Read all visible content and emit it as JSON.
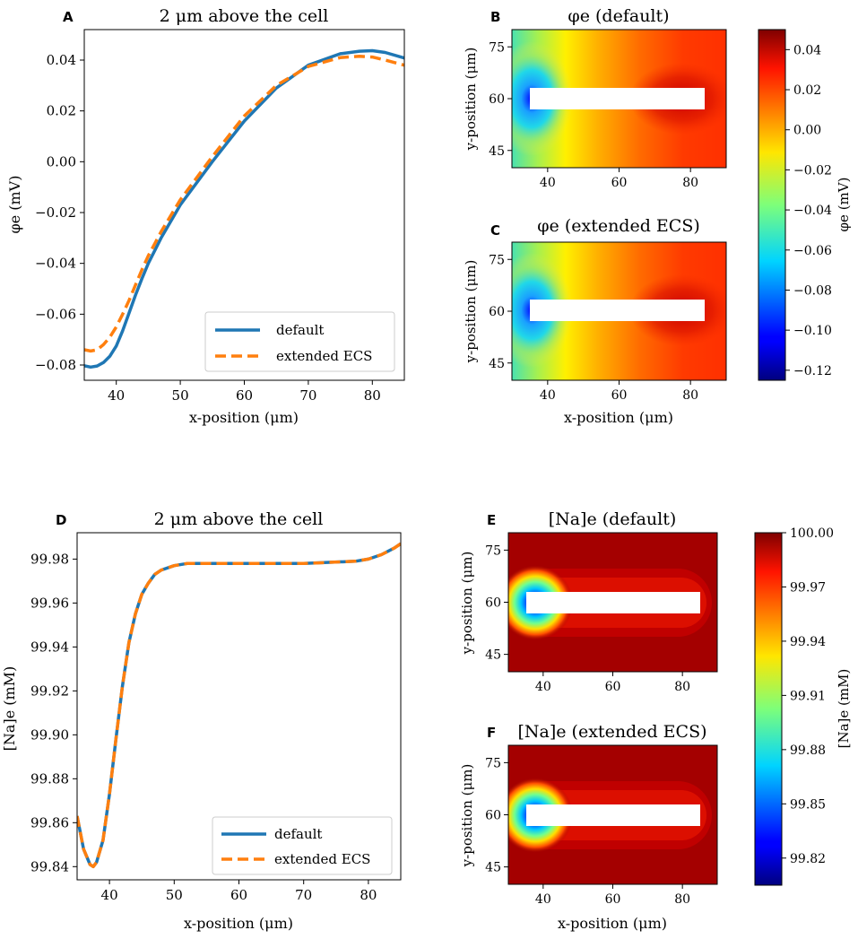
{
  "colors": {
    "default_line": "#1f77b4",
    "extended_line": "#ff7f0e",
    "cell_fill": "#ffffff",
    "axis": "#000000"
  },
  "chart_data": [
    {
      "panel": "A",
      "type": "line",
      "title": "2 μm above the cell",
      "xlabel": "x-position (μm)",
      "ylabel": "φe (mV)",
      "xlim": [
        35,
        85
      ],
      "ylim": [
        -0.086,
        0.052
      ],
      "xticks": [
        40,
        50,
        60,
        70,
        80
      ],
      "yticks": [
        -0.08,
        -0.06,
        -0.04,
        -0.02,
        0.0,
        0.02,
        0.04
      ],
      "ytick_labels": [
        "−0.08",
        "−0.06",
        "−0.04",
        "−0.02",
        "0.00",
        "0.02",
        "0.04"
      ],
      "legend_position": "lower-right",
      "series": [
        {
          "name": "default",
          "style": "solid",
          "x": [
            35,
            36,
            37,
            38,
            39,
            40,
            41,
            42,
            43,
            44,
            45,
            47,
            50,
            55,
            60,
            65,
            70,
            75,
            78,
            80,
            82,
            85
          ],
          "y": [
            -0.0803,
            -0.0808,
            -0.0804,
            -0.079,
            -0.0765,
            -0.0725,
            -0.0665,
            -0.0595,
            -0.0525,
            -0.046,
            -0.04,
            -0.03,
            -0.017,
            0.0,
            0.016,
            0.029,
            0.038,
            0.0425,
            0.0435,
            0.0437,
            0.043,
            0.0408
          ]
        },
        {
          "name": "extended ECS",
          "style": "dashed",
          "x": [
            35,
            36,
            37,
            38,
            39,
            40,
            41,
            42,
            43,
            44,
            45,
            47,
            50,
            55,
            60,
            65,
            70,
            75,
            78,
            80,
            82,
            85
          ],
          "y": [
            -0.074,
            -0.0745,
            -0.074,
            -0.072,
            -0.069,
            -0.065,
            -0.06,
            -0.0545,
            -0.0485,
            -0.0425,
            -0.037,
            -0.0275,
            -0.015,
            0.002,
            0.018,
            0.03,
            0.0375,
            0.041,
            0.0415,
            0.0412,
            0.04,
            0.038
          ]
        }
      ]
    },
    {
      "panel": "B",
      "type": "heatmap",
      "title": "φe (default)",
      "xlabel": "",
      "ylabel": "y-position (μm)",
      "xlim": [
        30,
        90
      ],
      "ylim": [
        40,
        80
      ],
      "xticks": [
        40,
        60,
        80
      ],
      "yticks": [
        45,
        60,
        75
      ],
      "cell": {
        "x": [
          35,
          85
        ],
        "y": [
          57,
          63
        ]
      },
      "field": "potential",
      "variant": "default"
    },
    {
      "panel": "C",
      "type": "heatmap",
      "title": "φe (extended ECS)",
      "xlabel": "x-position (μm)",
      "ylabel": "y-position (μm)",
      "xlim": [
        30,
        90
      ],
      "ylim": [
        40,
        80
      ],
      "xticks": [
        40,
        60,
        80
      ],
      "yticks": [
        45,
        60,
        75
      ],
      "cell": {
        "x": [
          35,
          85
        ],
        "y": [
          57,
          63
        ]
      },
      "field": "potential",
      "variant": "extended"
    },
    {
      "panel": "colorbar-1",
      "type": "colorbar",
      "label": "φe (mV)",
      "range": [
        -0.125,
        0.05
      ],
      "ticks": [
        0.04,
        0.02,
        0.0,
        -0.02,
        -0.04,
        -0.06,
        -0.08,
        -0.1,
        -0.12
      ],
      "tick_labels": [
        "0.04",
        "0.02",
        "0.00",
        "−0.02",
        "−0.04",
        "−0.06",
        "−0.08",
        "−0.10",
        "−0.12"
      ]
    },
    {
      "panel": "D",
      "type": "line",
      "title": "2 μm above the cell",
      "xlabel": "x-position (μm)",
      "ylabel": "[Na]e (mM)",
      "xlim": [
        35,
        85
      ],
      "ylim": [
        99.834,
        99.992
      ],
      "xticks": [
        40,
        50,
        60,
        70,
        80
      ],
      "yticks": [
        99.84,
        99.86,
        99.88,
        99.9,
        99.92,
        99.94,
        99.96,
        99.98
      ],
      "ytick_labels": [
        "99.84",
        "99.86",
        "99.88",
        "99.90",
        "99.92",
        "99.94",
        "99.96",
        "99.98"
      ],
      "legend_position": "lower-right",
      "series": [
        {
          "name": "default",
          "style": "solid",
          "x": [
            35,
            36,
            37,
            37.5,
            38,
            39,
            40,
            41,
            42,
            43,
            44,
            45,
            46,
            47,
            48,
            50,
            52,
            55,
            60,
            70,
            78,
            80,
            82,
            84,
            85
          ],
          "y": [
            99.863,
            99.848,
            99.841,
            99.84,
            99.842,
            99.852,
            99.873,
            99.898,
            99.922,
            99.942,
            99.955,
            99.964,
            99.969,
            99.973,
            99.975,
            99.977,
            99.978,
            99.978,
            99.978,
            99.978,
            99.979,
            99.98,
            99.982,
            99.985,
            99.987
          ]
        },
        {
          "name": "extended ECS",
          "style": "dashed",
          "x": [
            35,
            36,
            37,
            37.5,
            38,
            39,
            40,
            41,
            42,
            43,
            44,
            45,
            46,
            47,
            48,
            50,
            52,
            55,
            60,
            70,
            78,
            80,
            82,
            84,
            85
          ],
          "y": [
            99.863,
            99.848,
            99.841,
            99.84,
            99.842,
            99.852,
            99.873,
            99.898,
            99.922,
            99.942,
            99.955,
            99.964,
            99.969,
            99.973,
            99.975,
            99.977,
            99.978,
            99.978,
            99.978,
            99.978,
            99.979,
            99.98,
            99.982,
            99.985,
            99.987
          ]
        }
      ]
    },
    {
      "panel": "E",
      "type": "heatmap",
      "title": "[Na]e (default)",
      "xlabel": "",
      "ylabel": "y-position (μm)",
      "xlim": [
        30,
        90
      ],
      "ylim": [
        40,
        80
      ],
      "xticks": [
        40,
        60,
        80
      ],
      "yticks": [
        45,
        60,
        75
      ],
      "cell": {
        "x": [
          35,
          85
        ],
        "y": [
          57,
          63
        ]
      },
      "field": "sodium",
      "variant": "default"
    },
    {
      "panel": "F",
      "type": "heatmap",
      "title": "[Na]e (extended ECS)",
      "xlabel": "x-position (μm)",
      "ylabel": "y-position (μm)",
      "xlim": [
        30,
        90
      ],
      "ylim": [
        40,
        80
      ],
      "xticks": [
        40,
        60,
        80
      ],
      "yticks": [
        45,
        60,
        75
      ],
      "cell": {
        "x": [
          35,
          85
        ],
        "y": [
          57,
          63
        ]
      },
      "field": "sodium",
      "variant": "extended"
    },
    {
      "panel": "colorbar-2",
      "type": "colorbar",
      "label": "[Na]e (mM)",
      "range": [
        99.805,
        100.0
      ],
      "ticks": [
        100.0,
        99.97,
        99.94,
        99.91,
        99.88,
        99.85,
        99.82
      ],
      "tick_labels": [
        "100.00",
        "99.97",
        "99.94",
        "99.91",
        "99.88",
        "99.85",
        "99.82"
      ]
    }
  ]
}
